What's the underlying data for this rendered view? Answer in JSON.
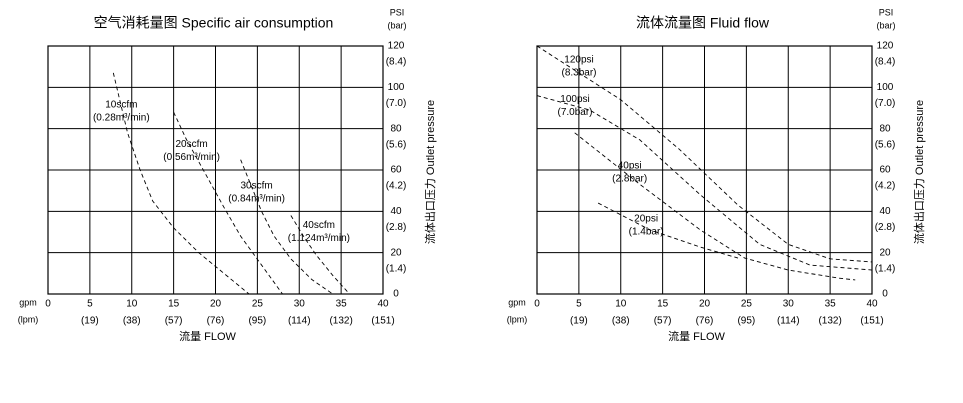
{
  "chart_data": [
    {
      "type": "line",
      "title": "空气消耗量图 Specific air consumption",
      "xlabel": "流量 FLOW",
      "ylabel": "流体出口压力 Outlet pressure",
      "x_unit": "gpm",
      "x_unit_secondary": "(lpm)",
      "y_unit": "PSI",
      "y_unit_secondary": "(bar)",
      "xlim": [
        0,
        40
      ],
      "xticks": [
        0,
        5,
        10,
        15,
        20,
        25,
        30,
        35,
        40
      ],
      "xticks_secondary": [
        {
          "value": 5,
          "label": "(19)"
        },
        {
          "value": 10,
          "label": "(38)"
        },
        {
          "value": 15,
          "label": "(57)"
        },
        {
          "value": 20,
          "label": "(76)"
        },
        {
          "value": 25,
          "label": "(95)"
        },
        {
          "value": 30,
          "label": "(114)"
        },
        {
          "value": 35,
          "label": "(132)"
        },
        {
          "value": 40,
          "label": "(151)"
        }
      ],
      "ylim": [
        0,
        120
      ],
      "yticks": [
        0,
        20,
        40,
        60,
        80,
        100,
        120
      ],
      "yticks_secondary": [
        {
          "value": 20,
          "label": "(1.4)"
        },
        {
          "value": 40,
          "label": "(2.8)"
        },
        {
          "value": 60,
          "label": "(4.2)"
        },
        {
          "value": 80,
          "label": "(5.6)"
        },
        {
          "value": 100,
          "label": "(7.0)"
        },
        {
          "value": 120,
          "label": "(8.4)"
        }
      ],
      "grid": true,
      "color": "#000000",
      "series": [
        {
          "name": "10scfm",
          "sublabel": "(0.28m³/min)",
          "x": [
            7.8,
            8.5,
            9.5,
            11,
            12.5,
            15,
            18,
            21,
            24
          ],
          "values": [
            107,
            95,
            78,
            60,
            45,
            32,
            20,
            10,
            0
          ]
        },
        {
          "name": "20scfm",
          "sublabel": "(0.56m³/min)",
          "x": [
            15,
            16.5,
            18,
            19.5,
            21,
            23,
            25.5,
            28
          ],
          "values": [
            88,
            75,
            64,
            53,
            42,
            28,
            14,
            0
          ]
        },
        {
          "name": "30scfm",
          "sublabel": "(0.84m³/min)",
          "x": [
            23,
            24,
            25.5,
            27,
            29,
            31.5,
            34
          ],
          "values": [
            65,
            55,
            40,
            28,
            17,
            7,
            0
          ]
        },
        {
          "name": "40scfm",
          "sublabel": "(1.124m³/min)",
          "x": [
            29,
            30.5,
            32,
            34,
            36
          ],
          "values": [
            38,
            28,
            19,
            9,
            0
          ]
        }
      ]
    },
    {
      "type": "line",
      "title": "流体流量图 Fluid flow",
      "xlabel": "流量 FLOW",
      "ylabel": "流体出口压力 Outlet pressure",
      "x_unit": "gpm",
      "x_unit_secondary": "(lpm)",
      "y_unit": "PSI",
      "y_unit_secondary": "(bar)",
      "xlim": [
        0,
        40
      ],
      "xticks": [
        0,
        5,
        10,
        15,
        20,
        25,
        30,
        35,
        40
      ],
      "xticks_secondary": [
        {
          "value": 5,
          "label": "(19)"
        },
        {
          "value": 10,
          "label": "(38)"
        },
        {
          "value": 15,
          "label": "(57)"
        },
        {
          "value": 20,
          "label": "(76)"
        },
        {
          "value": 25,
          "label": "(95)"
        },
        {
          "value": 30,
          "label": "(114)"
        },
        {
          "value": 35,
          "label": "(132)"
        },
        {
          "value": 40,
          "label": "(151)"
        }
      ],
      "ylim": [
        0,
        120
      ],
      "yticks": [
        0,
        20,
        40,
        60,
        80,
        100,
        120
      ],
      "yticks_secondary": [
        {
          "value": 20,
          "label": "(1.4)"
        },
        {
          "value": 40,
          "label": "(2.8)"
        },
        {
          "value": 60,
          "label": "(4.2)"
        },
        {
          "value": 80,
          "label": "(5.6)"
        },
        {
          "value": 100,
          "label": "(7.0)"
        },
        {
          "value": 120,
          "label": "(8.4)"
        }
      ],
      "grid": true,
      "color": "#000000",
      "series": [
        {
          "name": "120psi",
          "sublabel": "(8.3bar)",
          "x": [
            0,
            5,
            10,
            17,
            24,
            30,
            35,
            40
          ],
          "values": [
            120,
            107,
            94,
            70,
            43,
            24,
            17,
            15.5
          ]
        },
        {
          "name": "100psi",
          "sublabel": "(7.0bar)",
          "x": [
            0,
            6.3,
            12.3,
            19.5,
            26.6,
            32.6,
            40
          ],
          "values": [
            96,
            89,
            74.5,
            48,
            24,
            14,
            11.6
          ]
        },
        {
          "name": "40psi",
          "sublabel": "(2.8bar)",
          "x": [
            4.5,
            12.3,
            19.5,
            24.8,
            30,
            36,
            38
          ],
          "values": [
            78,
            53,
            31,
            17.4,
            11.6,
            7.7,
            6.8
          ]
        },
        {
          "name": "20psi",
          "sublabel": "(1.4bar)",
          "x": [
            7.3,
            13.5,
            19.5,
            24
          ],
          "values": [
            44,
            31,
            22.7,
            17.4
          ]
        }
      ]
    }
  ]
}
